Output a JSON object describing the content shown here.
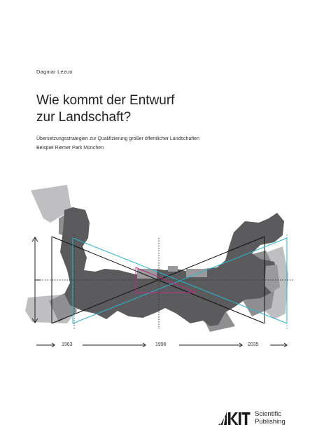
{
  "cover": {
    "author": "Dagmar Lezuo",
    "title_line1": "Wie kommt der Entwurf",
    "title_line2": "zur Landschaft?",
    "subtitle_line1": "Übersetzungsstrategien zur Qualifizierung großer öffentlicher Landschaften",
    "subtitle_line2": "Beispiel Riemer Park München"
  },
  "timeline": {
    "years": [
      "1963",
      "1996",
      "2035"
    ]
  },
  "publisher": {
    "logo_text": "KIT",
    "name_line1": "Scientific",
    "name_line2": "Publishing"
  },
  "colors": {
    "shape_dark": "#5a5a5c",
    "shape_mid": "#8d8d8f",
    "shape_light": "#b9b9bb",
    "line_cyan": "#2bb5cf",
    "line_magenta": "#c02a7d"
  }
}
